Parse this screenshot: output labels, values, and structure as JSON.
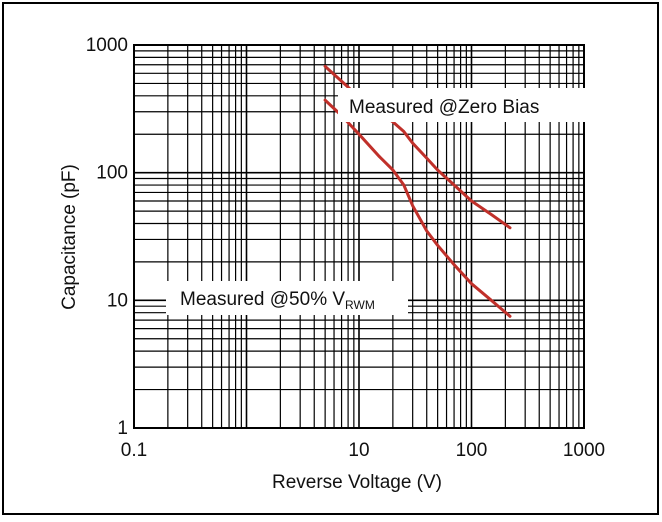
{
  "chart_data": {
    "type": "line",
    "xlabel": "Reverse Voltage (V)",
    "ylabel": "Capacitance (pF)",
    "x_scale": "log",
    "y_scale": "log",
    "xlim": [
      0.1,
      1000
    ],
    "ylim": [
      1,
      1000
    ],
    "x_ticks": [
      "0.1",
      "10",
      "100",
      "1000"
    ],
    "y_ticks": [
      "1",
      "10",
      "100",
      "1000"
    ],
    "grid": true,
    "series": [
      {
        "name": "Measured @Zero Bias",
        "color": "#c0302a",
        "x": [
          5,
          7,
          10,
          15,
          20,
          25,
          30,
          40,
          50,
          70,
          100,
          150,
          220
        ],
        "y": [
          680,
          520,
          390,
          300,
          250,
          210,
          170,
          130,
          105,
          80,
          60,
          47,
          37
        ]
      },
      {
        "name": "Measured @50% VRWM",
        "color": "#c0302a",
        "x": [
          5,
          7,
          10,
          15,
          20,
          25,
          30,
          40,
          50,
          70,
          100,
          150,
          220
        ],
        "y": [
          370,
          280,
          200,
          135,
          105,
          80,
          55,
          35,
          27,
          19,
          13.5,
          10,
          7.5
        ]
      }
    ],
    "annotations": {
      "zero_bias": "Measured @Zero Bias",
      "half_vrwm_main": "Measured @50% V",
      "half_vrwm_sub": "RWM"
    }
  }
}
